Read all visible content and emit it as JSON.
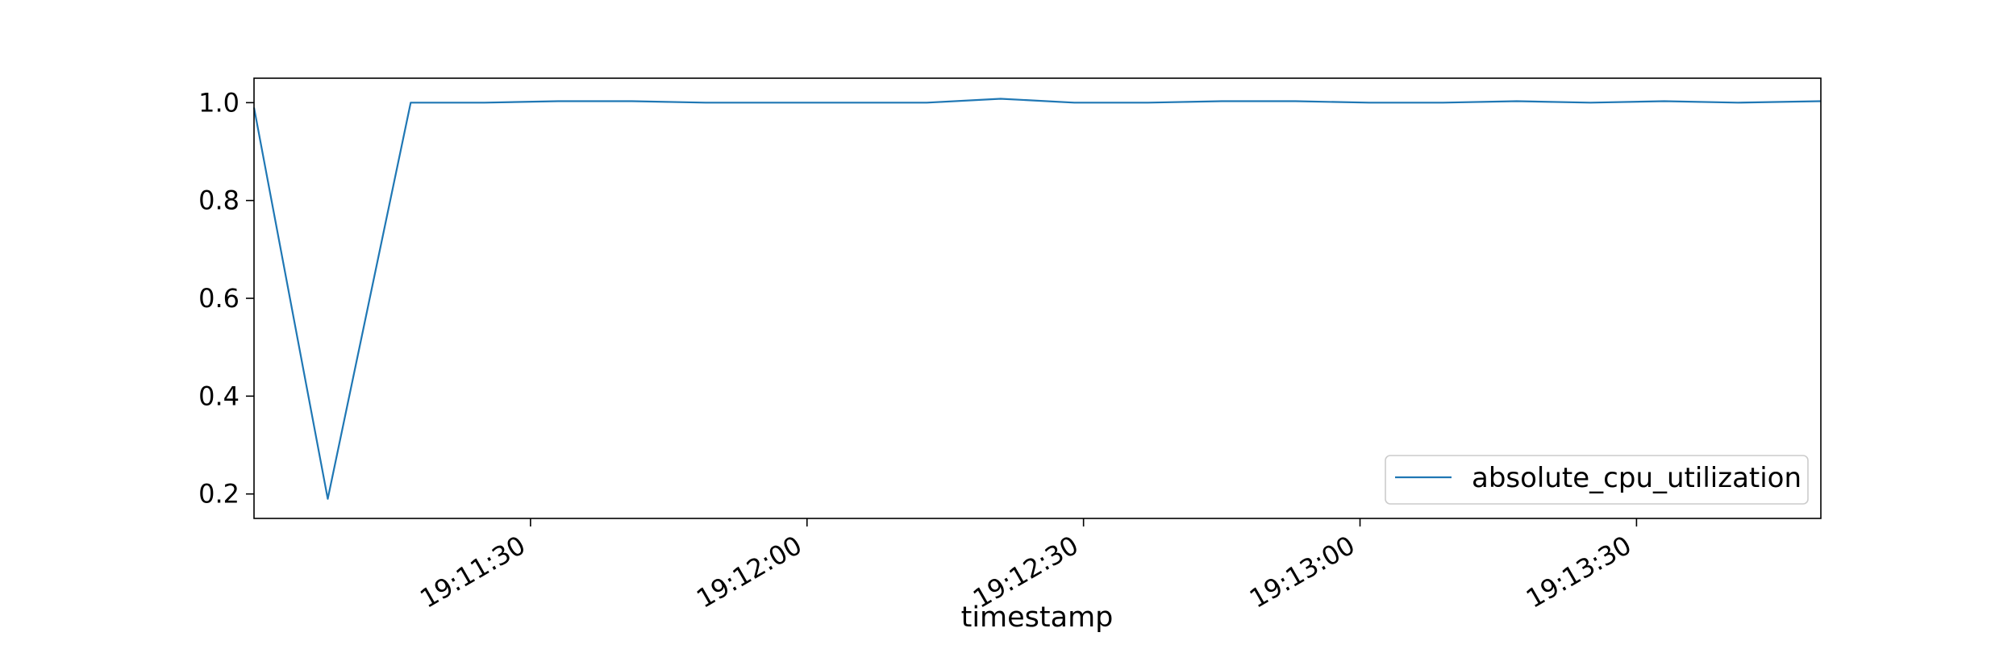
{
  "chart_data": {
    "type": "line",
    "title": "",
    "xlabel": "timestamp",
    "ylabel": "",
    "x_start": "19:11:00",
    "x_end": "19:13:50",
    "xlim": [
      "19:11:00",
      "19:13:50"
    ],
    "ylim": [
      0.15,
      1.05
    ],
    "yticks": [
      0.2,
      0.4,
      0.6,
      0.8,
      1.0
    ],
    "ytick_labels": [
      "0.2",
      "0.4",
      "0.6",
      "0.8",
      "1.0"
    ],
    "xticks": [
      "19:11:30",
      "19:12:00",
      "19:12:30",
      "19:13:00",
      "19:13:30"
    ],
    "xtick_labels": [
      "19:11:30",
      "19:12:00",
      "19:12:30",
      "19:13:00",
      "19:13:30"
    ],
    "grid": false,
    "legend_position": "lower-right",
    "series": [
      {
        "name": "absolute_cpu_utilization",
        "color": "#1f77b4",
        "x": [
          "19:11:00",
          "19:11:08",
          "19:11:17",
          "19:11:25",
          "19:11:33",
          "19:11:41",
          "19:11:49",
          "19:11:57",
          "19:12:05",
          "19:12:13",
          "19:12:21",
          "19:12:29",
          "19:12:37",
          "19:12:45",
          "19:12:53",
          "19:13:01",
          "19:13:09",
          "19:13:17",
          "19:13:25",
          "19:13:33",
          "19:13:41",
          "19:13:50"
        ],
        "values": [
          0.99,
          0.19,
          1.0,
          1.0,
          1.003,
          1.003,
          1.0,
          1.0,
          1.0,
          1.0,
          1.008,
          1.0,
          1.0,
          1.003,
          1.003,
          1.0,
          1.0,
          1.003,
          1.0,
          1.003,
          1.0,
          1.003
        ]
      }
    ]
  }
}
